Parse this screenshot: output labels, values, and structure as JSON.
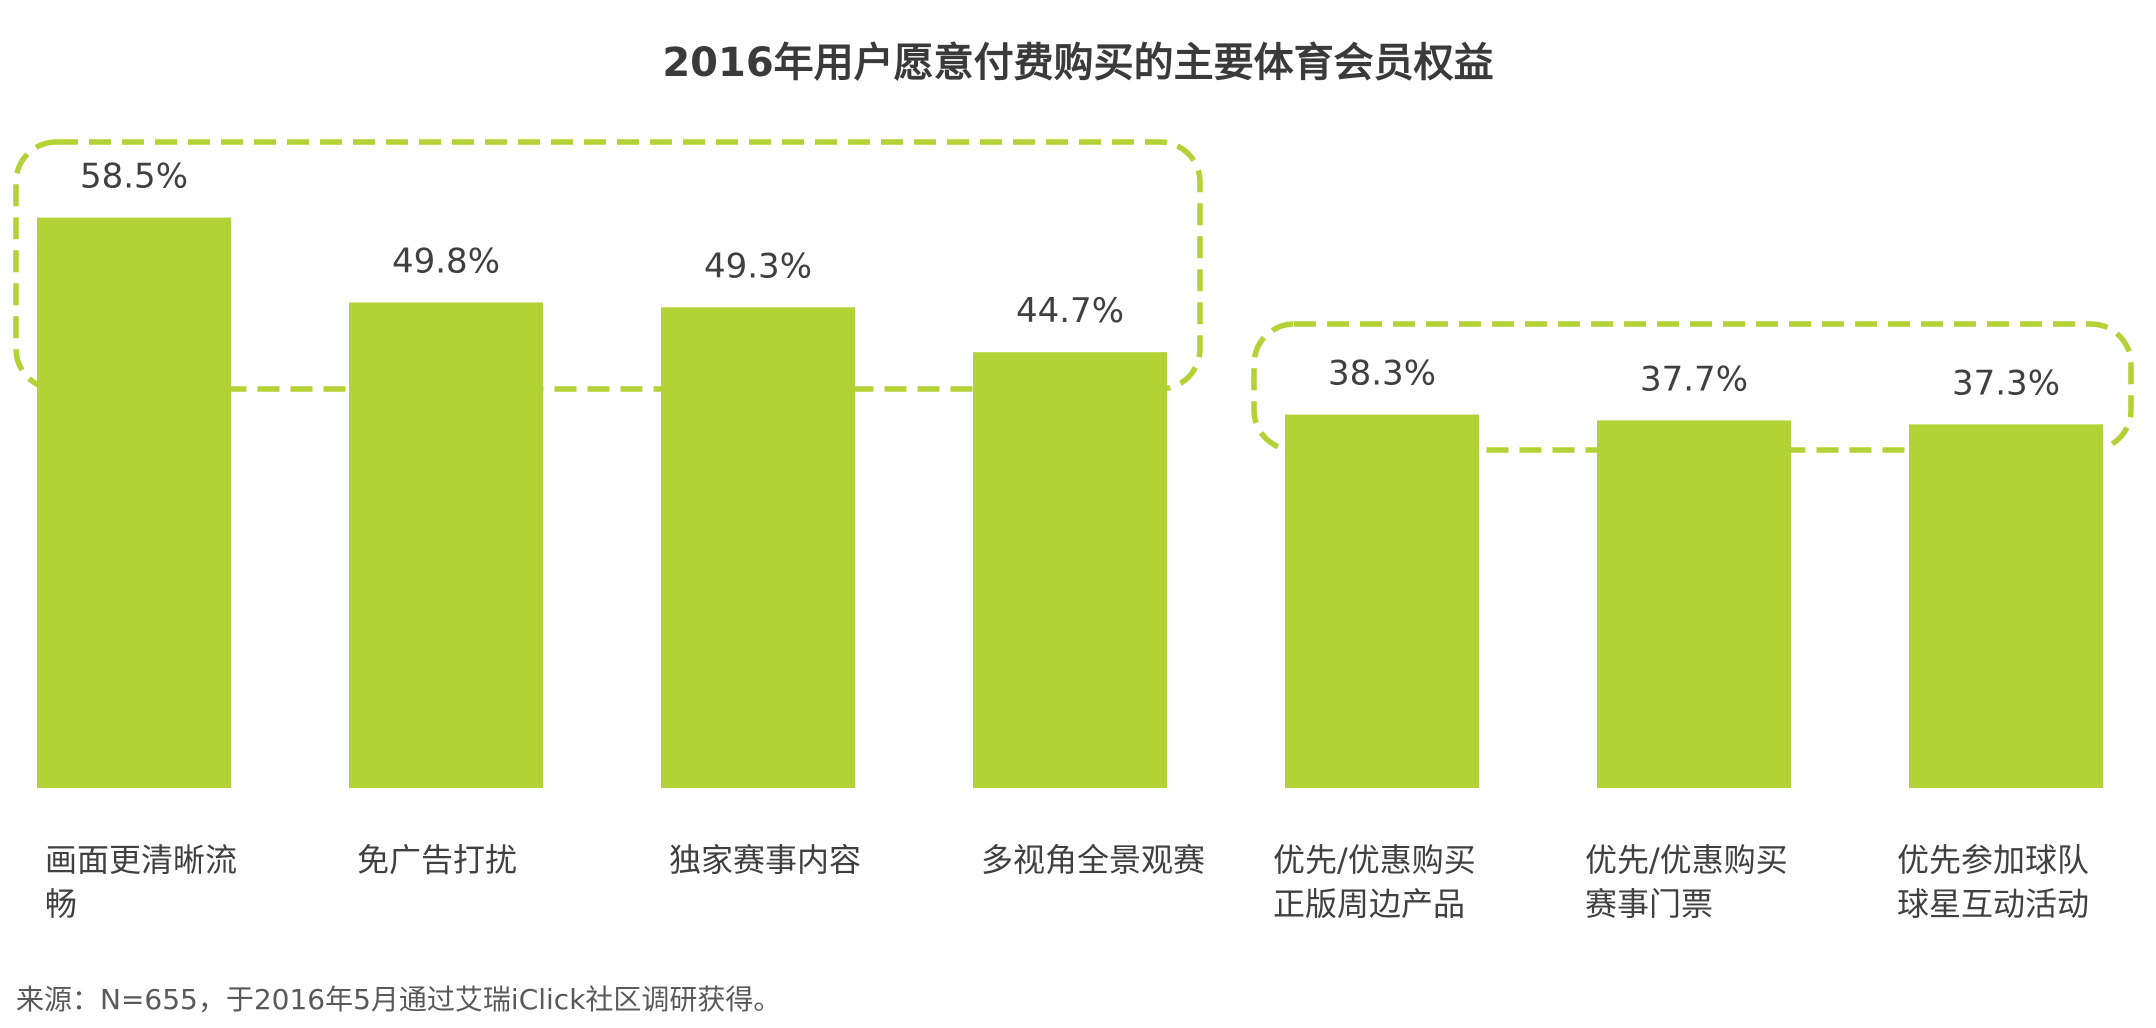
{
  "chart_data": {
    "type": "bar",
    "title": "2016年用户愿意付费购买的主要体育会员权益",
    "categories": [
      [
        "画面更清晰流",
        "畅"
      ],
      [
        "免广告打扰"
      ],
      [
        "独家赛事内容"
      ],
      [
        "多视角全景观赛"
      ],
      [
        "优先/优惠购买",
        "正版周边产品"
      ],
      [
        "优先/优惠购买",
        "赛事门票"
      ],
      [
        "优先参加球队",
        "球星互动活动"
      ]
    ],
    "values": [
      58.5,
      49.8,
      49.3,
      44.7,
      38.3,
      37.7,
      37.3
    ],
    "value_labels": [
      "58.5%",
      "49.8%",
      "49.3%",
      "44.7%",
      "38.3%",
      "37.7%",
      "37.3%"
    ],
    "xlabel": "",
    "ylabel": "",
    "ylim": [
      0,
      60
    ],
    "grid": false,
    "groups_highlighted": [
      [
        0,
        3
      ],
      [
        4,
        6
      ]
    ],
    "colors": {
      "bar": "#b2d235",
      "highlight_box": "#b2d235",
      "text": "#404040"
    }
  },
  "footnote": "来源：N=655，于2016年5月通过艾瑞iClick社区调研获得。"
}
